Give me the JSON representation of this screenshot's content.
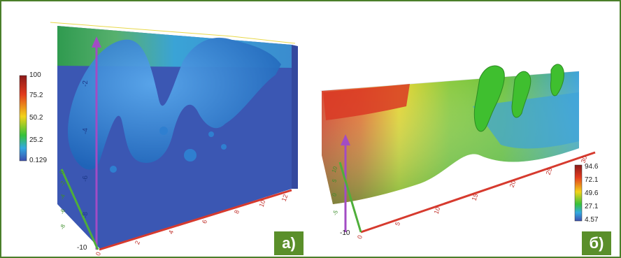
{
  "panel_a": {
    "label": "а)",
    "colorbar": {
      "ticks": [
        "100",
        "75.2",
        "50.2",
        "25.2",
        "0.129"
      ],
      "colors": [
        "#8b1a1a",
        "#e23b1e",
        "#f2d31a",
        "#36c23a",
        "#33a9e0",
        "#3c4fb0"
      ]
    },
    "vertical_axis_ticks": [
      "-2",
      "-4",
      "-6",
      "-8"
    ],
    "bottom_axis_ticks": [
      "0",
      "2",
      "4",
      "6",
      "8",
      "10",
      "12"
    ],
    "side_axis_ticks": [
      "-10",
      "-8",
      "-6",
      "-4",
      "-2",
      "0"
    ],
    "colors": {
      "volume": "#3b57b3",
      "isosurface": "#2e86d4",
      "axis_vertical": "#a24cc4",
      "axis_bottom": "#d63a2e",
      "axis_side": "#4fae3a"
    }
  },
  "panel_b": {
    "label": "б)",
    "colorbar": {
      "ticks": [
        "94.6",
        "72.1",
        "49.6",
        "27.1",
        "4.57"
      ],
      "colors": [
        "#8b1a1a",
        "#e23b1e",
        "#f2d31a",
        "#36c23a",
        "#33a9e0",
        "#3c4fb0"
      ]
    },
    "bottom_axis_ticks": [
      "0",
      "5",
      "10",
      "15",
      "20",
      "25",
      "30"
    ],
    "side_axis_ticks": [
      "-10",
      "-5",
      "0",
      "5",
      "10"
    ],
    "colors": {
      "volume_hot": "#d93a24",
      "volume_warm": "#e8d42a",
      "volume_mid": "#6cc23a",
      "volume_cool": "#3da3da",
      "isosurface": "#3fbf2f",
      "axis_vertical": "#a24cc4",
      "axis_bottom": "#d63a2e",
      "axis_side": "#4fae3a"
    }
  }
}
